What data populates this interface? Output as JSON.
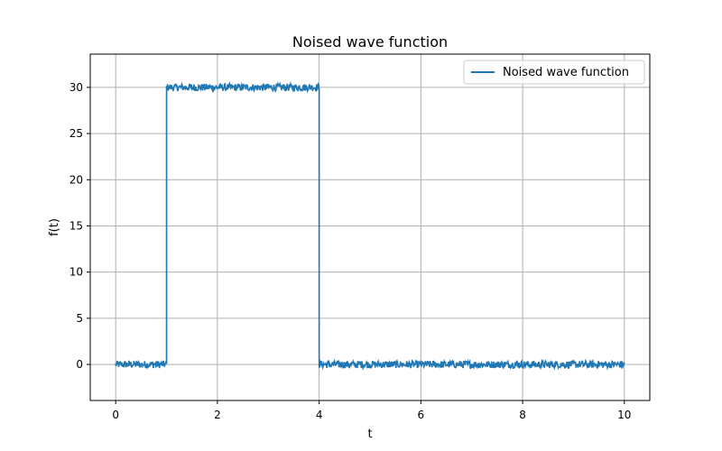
{
  "chart_data": {
    "type": "line",
    "title": "Noised wave function",
    "xlabel": "t",
    "ylabel": "f(t)",
    "xlim": [
      -0.5,
      10.5
    ],
    "ylim": [
      -3.9,
      33.6
    ],
    "xticks": [
      0,
      2,
      4,
      6,
      8,
      10
    ],
    "yticks": [
      0,
      5,
      10,
      15,
      20,
      25,
      30
    ],
    "grid": true,
    "legend_position": "top-right",
    "series": [
      {
        "name": "Noised wave function",
        "color": "#1f77b4",
        "segments": [
          {
            "x_start": 0,
            "x_end": 1,
            "level": 0,
            "noise_amplitude": 0.4
          },
          {
            "x_start": 1,
            "x_end": 4,
            "level": 30,
            "noise_amplitude": 0.4
          },
          {
            "x_start": 4,
            "x_end": 10,
            "level": 0,
            "noise_amplitude": 0.4
          }
        ]
      }
    ]
  }
}
